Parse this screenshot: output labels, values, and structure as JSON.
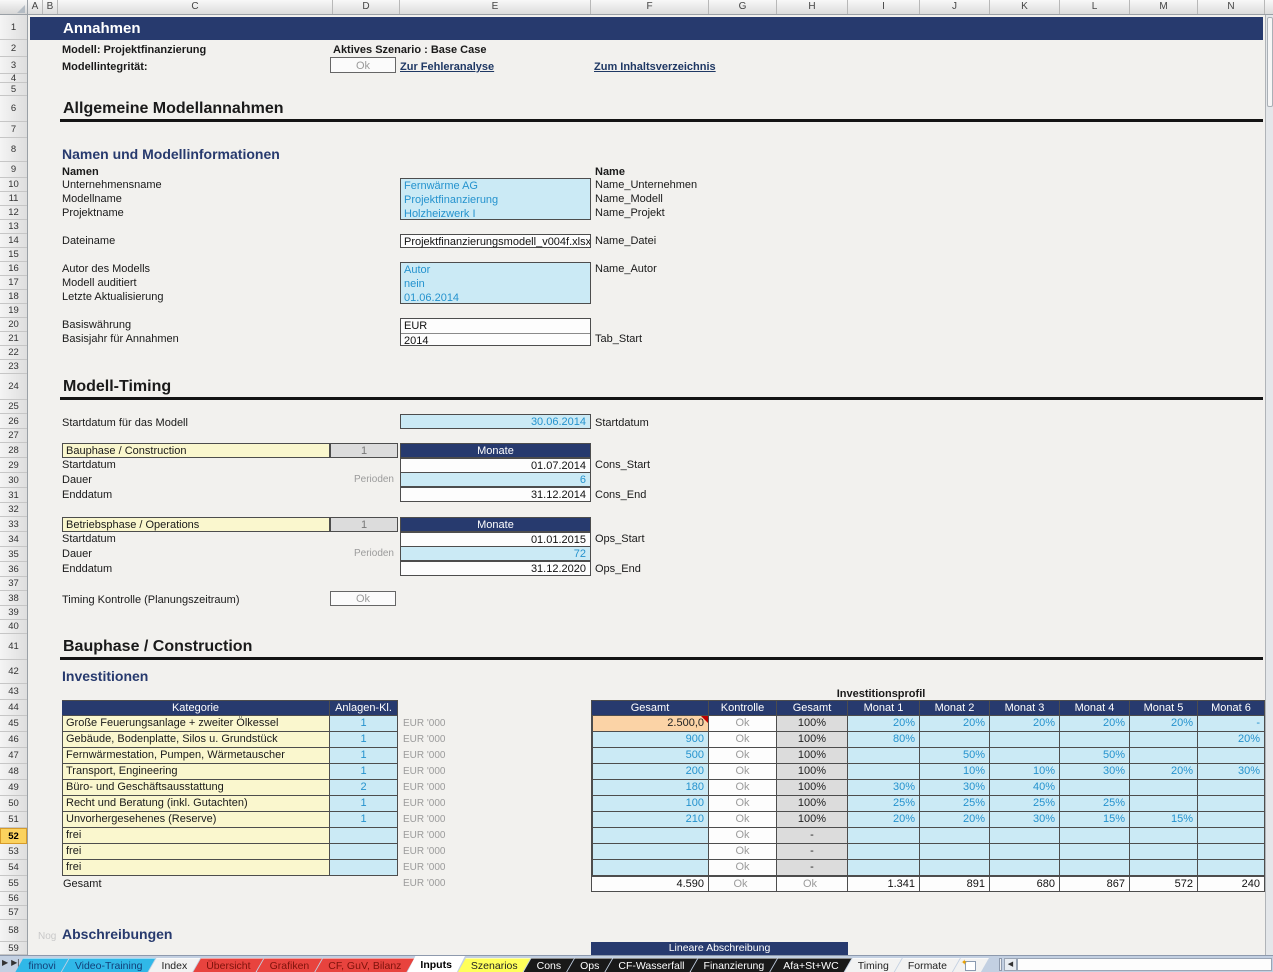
{
  "title": "Annahmen",
  "header": {
    "modell": "Modell: Projektfinanzierung",
    "szenario": "Aktives Szenario : Base Case",
    "integritaet_label": "Modellintegrität:",
    "integritaet_status": "Ok",
    "link_fehleranalyse": "Zur Fehleranalyse",
    "link_inhalt": "Zum Inhaltsverzeichnis"
  },
  "sections": {
    "allgemein": "Allgemeine Modellannahmen",
    "namen_info": "Namen und Modellinformationen",
    "timing": "Modell-Timing",
    "bauphase": "Bauphase / Construction",
    "investitionen": "Investitionen",
    "abschreibungen": "Abschreibungen",
    "lineare_abschreibung": "Lineare Abschreibung",
    "watermark": "Nog"
  },
  "names": {
    "col_label": "Namen",
    "col_name": "Name",
    "rows": [
      {
        "label": "Unternehmensname",
        "value": "Fernwärme AG",
        "name": "Name_Unternehmen",
        "type": "input"
      },
      {
        "label": "Modellname",
        "value": "Projektfinanzierung",
        "name": "Name_Modell",
        "type": "input"
      },
      {
        "label": "Projektname",
        "value": "Holzheizwerk I",
        "name": "Name_Projekt",
        "type": "input"
      },
      {
        "label": "Dateiname",
        "value": "Projektfinanzierungsmodell_v004f.xlsx",
        "name": "Name_Datei",
        "type": "output"
      },
      {
        "label": "Autor des Modells",
        "value": "Autor",
        "name": "Name_Autor",
        "type": "input"
      },
      {
        "label": "Modell auditiert",
        "value": "nein",
        "name": "",
        "type": "input"
      },
      {
        "label": "Letzte Aktualisierung",
        "value": "01.06.2014",
        "name": "",
        "type": "input"
      },
      {
        "label": "Basiswährung",
        "value": "EUR",
        "name": "",
        "type": "output"
      },
      {
        "label": "Basisjahr für Annahmen",
        "value": "2014",
        "name": "Tab_Start",
        "type": "output"
      }
    ]
  },
  "timing": {
    "startdatum_label": "Startdatum für das Modell",
    "startdatum_value": "30.06.2014",
    "startdatum_name": "Startdatum",
    "kontrolle_label": "Timing Kontrolle (Planungszeitraum)",
    "kontrolle_status": "Ok",
    "phases": [
      {
        "title": "Bauphase / Construction",
        "count": "1",
        "unit": "Monate",
        "rows": [
          {
            "label": "Startdatum",
            "mid": "",
            "value": "01.07.2014",
            "name": "Cons_Start",
            "type": "output"
          },
          {
            "label": "Dauer",
            "mid": "Perioden",
            "value": "6",
            "name": "",
            "type": "input"
          },
          {
            "label": "Enddatum",
            "mid": "",
            "value": "31.12.2014",
            "name": "Cons_End",
            "type": "output"
          }
        ]
      },
      {
        "title": "Betriebsphase / Operations",
        "count": "1",
        "unit": "Monate",
        "rows": [
          {
            "label": "Startdatum",
            "mid": "",
            "value": "01.01.2015",
            "name": "Ops_Start",
            "type": "output"
          },
          {
            "label": "Dauer",
            "mid": "Perioden",
            "value": "72",
            "name": "",
            "type": "input"
          },
          {
            "label": "Enddatum",
            "mid": "",
            "value": "31.12.2020",
            "name": "Ops_End",
            "type": "output"
          }
        ]
      }
    ]
  },
  "invest": {
    "profile_title": "Investitionsprofil",
    "unit": "EUR '000",
    "headers": {
      "kategorie": "Kategorie",
      "anlagen": "Anlagen-Kl.",
      "gesamt": "Gesamt",
      "kontrolle": "Kontrolle",
      "gesamt_pct": "Gesamt",
      "months": [
        "Monat 1",
        "Monat 2",
        "Monat 3",
        "Monat 4",
        "Monat 5",
        "Monat 6"
      ]
    },
    "rows": [
      {
        "kategorie": "Große Feuerungsanlage + zweiter Ölkessel",
        "anlagen": "1",
        "gesamt": "2.500,0",
        "orange": true,
        "comment": true,
        "kontrolle": "Ok",
        "pct": "100%",
        "months": [
          "20%",
          "20%",
          "20%",
          "20%",
          "20%",
          "-"
        ]
      },
      {
        "kategorie": "Gebäude, Bodenplatte, Silos u. Grundstück",
        "anlagen": "1",
        "gesamt": "900",
        "kontrolle": "Ok",
        "pct": "100%",
        "months": [
          "80%",
          "",
          "",
          "",
          "",
          "20%"
        ]
      },
      {
        "kategorie": "Fernwärmestation, Pumpen, Wärmetauscher",
        "anlagen": "1",
        "gesamt": "500",
        "kontrolle": "Ok",
        "pct": "100%",
        "months": [
          "",
          "50%",
          "",
          "50%",
          "",
          ""
        ]
      },
      {
        "kategorie": "Transport, Engineering",
        "anlagen": "1",
        "gesamt": "200",
        "kontrolle": "Ok",
        "pct": "100%",
        "months": [
          "",
          "10%",
          "10%",
          "30%",
          "20%",
          "30%"
        ]
      },
      {
        "kategorie": "Büro- und Geschäftsausstattung",
        "anlagen": "2",
        "gesamt": "180",
        "kontrolle": "Ok",
        "pct": "100%",
        "months": [
          "30%",
          "30%",
          "40%",
          "",
          "",
          ""
        ]
      },
      {
        "kategorie": "Recht und Beratung (inkl. Gutachten)",
        "anlagen": "1",
        "gesamt": "100",
        "kontrolle": "Ok",
        "pct": "100%",
        "months": [
          "25%",
          "25%",
          "25%",
          "25%",
          "",
          ""
        ]
      },
      {
        "kategorie": "Unvorhergesehenes (Reserve)",
        "anlagen": "1",
        "gesamt": "210",
        "kontrolle": "Ok",
        "pct": "100%",
        "months": [
          "20%",
          "20%",
          "30%",
          "15%",
          "15%",
          ""
        ]
      },
      {
        "kategorie": "frei",
        "anlagen": "",
        "gesamt": "",
        "kontrolle": "Ok",
        "pct": "-",
        "months": [
          "",
          "",
          "",
          "",
          "",
          ""
        ]
      },
      {
        "kategorie": "frei",
        "anlagen": "",
        "gesamt": "",
        "kontrolle": "Ok",
        "pct": "-",
        "months": [
          "",
          "",
          "",
          "",
          "",
          ""
        ]
      },
      {
        "kategorie": "frei",
        "anlagen": "",
        "gesamt": "",
        "kontrolle": "Ok",
        "pct": "-",
        "months": [
          "",
          "",
          "",
          "",
          "",
          ""
        ]
      }
    ],
    "total": {
      "label": "Gesamt",
      "gesamt": "4.590",
      "kontrolle": "Ok",
      "pct": "Ok",
      "months": [
        "1.341",
        "891",
        "680",
        "867",
        "572",
        "240"
      ]
    }
  },
  "grid": {
    "columns": [
      "A",
      "B",
      "C",
      "D",
      "E",
      "F",
      "G",
      "H",
      "I",
      "J",
      "K",
      "L",
      "M",
      "N"
    ],
    "row_count": 59,
    "active_row": 52
  },
  "tabs": [
    {
      "label": "fimovi",
      "style": "cyan"
    },
    {
      "label": "Video-Training",
      "style": "cyan"
    },
    {
      "label": "Index",
      "style": "plain"
    },
    {
      "label": "Übersicht",
      "style": "red"
    },
    {
      "label": "Grafiken",
      "style": "red"
    },
    {
      "label": "CF, GuV, Bilanz",
      "style": "red"
    },
    {
      "label": "Inputs",
      "style": "active"
    },
    {
      "label": "Szenarios",
      "style": "yellow"
    },
    {
      "label": "Cons",
      "style": "dark"
    },
    {
      "label": "Ops",
      "style": "dark"
    },
    {
      "label": "CF-Wasserfall",
      "style": "dark"
    },
    {
      "label": "Finanzierung",
      "style": "dark"
    },
    {
      "label": "Afa+St+WC",
      "style": "dark"
    },
    {
      "label": "Timing",
      "style": "plain"
    },
    {
      "label": "Formate",
      "style": "plain"
    },
    {
      "label": "",
      "style": "insert"
    }
  ],
  "colors": {
    "navy": "#273a6e",
    "input_bg": "#cbeaf5",
    "input_text": "#2593ce",
    "yellow_bg": "#faf7ce",
    "orange_bg": "#fbd3a6",
    "gray_bg": "#dcdcdc",
    "gray_text": "#9b9b9b",
    "tab_red": "#e8433e",
    "tab_cyan": "#30b8e8",
    "tab_yellow": "#ffff5a",
    "link": "#1f3864"
  }
}
